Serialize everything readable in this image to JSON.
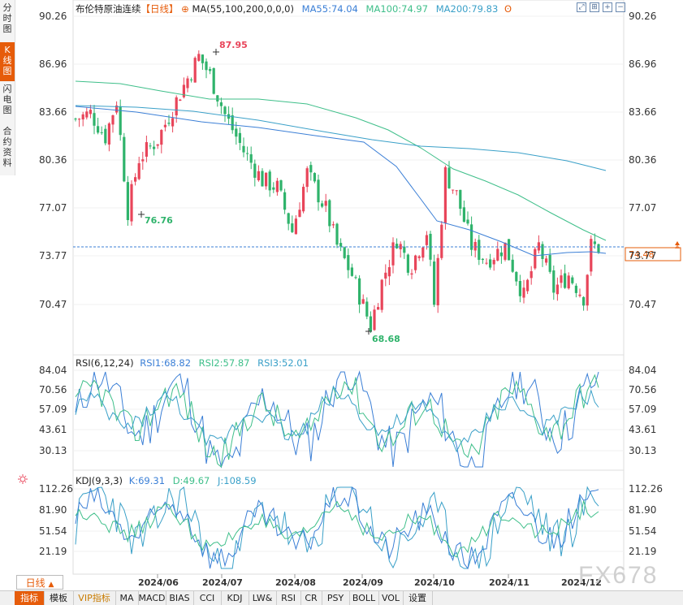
{
  "side_tabs": [
    {
      "label": "分时图",
      "active": false
    },
    {
      "label": "K线图",
      "active": true
    },
    {
      "label": "闪电图",
      "active": false
    },
    {
      "label": "合约资料",
      "active": false
    }
  ],
  "main": {
    "instrument": "布伦特原油连续",
    "period_tag": "【日线】",
    "ma_label": "MA(55,100,200,0,0,0)",
    "ma55": "MA55:74.04",
    "ma100": "MA100:74.97",
    "ma200": "MA200:79.83",
    "price_ticks": [
      "90.26",
      "86.96",
      "83.66",
      "80.36",
      "77.07",
      "73.77",
      "70.47"
    ],
    "current_price": "74.48",
    "high_label": "87.95",
    "low_label_1": "76.76",
    "low_label_2": "68.68"
  },
  "rsi": {
    "label": "RSI(6,12,24)",
    "rsi1": "RSI1:68.82",
    "rsi2": "RSI2:57.87",
    "rsi3": "RSI3:52.01",
    "ticks": [
      "84.04",
      "70.56",
      "57.09",
      "43.61",
      "30.13"
    ]
  },
  "kdj": {
    "label": "KDJ(9,3,3)",
    "k": "K:69.31",
    "d": "D:49.67",
    "j": "J:108.59",
    "ticks": [
      "112.26",
      "81.90",
      "51.54",
      "21.19"
    ]
  },
  "x_axis": [
    "2024/06",
    "2024/07",
    "2024/08",
    "2024/09",
    "2024/10",
    "2024/11",
    "2024/12"
  ],
  "period_selector": "日线",
  "bottom_tabs": [
    {
      "label": "指标",
      "active": true,
      "vip": false
    },
    {
      "label": "模板",
      "active": false,
      "vip": false
    },
    {
      "label": "VIP指标",
      "active": false,
      "vip": true
    },
    {
      "label": "MA",
      "active": false,
      "vip": false
    },
    {
      "label": "MACD",
      "active": false,
      "vip": false
    },
    {
      "label": "BIAS",
      "active": false,
      "vip": false
    },
    {
      "label": "CCI",
      "active": false,
      "vip": false
    },
    {
      "label": "KDJ",
      "active": false,
      "vip": false
    },
    {
      "label": "LW&",
      "active": false,
      "vip": false
    },
    {
      "label": "RSI",
      "active": false,
      "vip": false
    },
    {
      "label": "CR",
      "active": false,
      "vip": false
    },
    {
      "label": "PSY",
      "active": false,
      "vip": false
    },
    {
      "label": "BOLL",
      "active": false,
      "vip": false
    },
    {
      "label": "VOL",
      "active": false,
      "vip": false
    },
    {
      "label": "设置",
      "active": false,
      "vip": false
    }
  ],
  "watermark": "FX678",
  "colors": {
    "up": "#e8455a",
    "down": "#2fb36b",
    "ma55": "#3b7fd6",
    "ma100": "#3fbf8a",
    "ma200": "#3aa0c8",
    "accent": "#e65c0a"
  }
}
